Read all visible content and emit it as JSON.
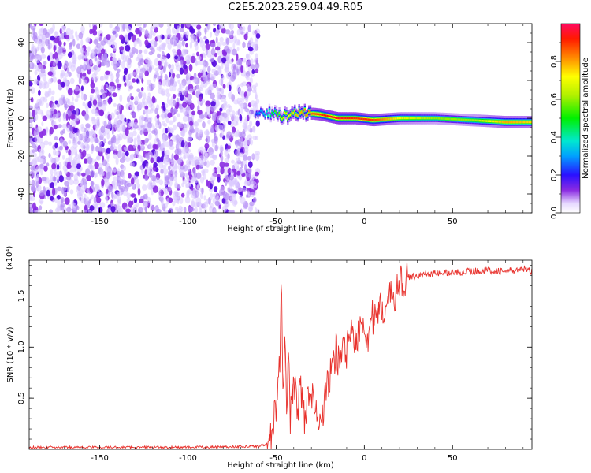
{
  "title": "C2E5.2023.259.04.49.R05",
  "chart_data": [
    {
      "type": "heatmap",
      "xlabel": "Height of straight line (km)",
      "ylabel": "Frequency (Hz)",
      "xlim": [
        -190,
        95
      ],
      "ylim": [
        -50,
        50
      ],
      "xticks": [
        -150,
        -100,
        -50,
        0,
        50
      ],
      "yticks": [
        -40,
        -20,
        0,
        20,
        40
      ],
      "colorbar": {
        "label": "Normalized spectral amplitude",
        "range": [
          0,
          1
        ],
        "ticks": [
          "0.0",
          "0.2",
          "0.4",
          "0.6",
          "0.8"
        ]
      },
      "noise_region": {
        "x": [
          -190,
          -62
        ],
        "freq": [
          -50,
          50
        ],
        "amplitude": [
          0.02,
          0.12
        ]
      },
      "signal_ridge": [
        {
          "x": -62,
          "freq": 2,
          "amplitude": 0.25
        },
        {
          "x": -55,
          "freq": 3,
          "amplitude": 0.4
        },
        {
          "x": -45,
          "freq": 1,
          "amplitude": 0.7
        },
        {
          "x": -35,
          "freq": 3,
          "amplitude": 0.8
        },
        {
          "x": -25,
          "freq": 2,
          "amplitude": 0.9
        },
        {
          "x": -15,
          "freq": 0,
          "amplitude": 0.95
        },
        {
          "x": -5,
          "freq": 0,
          "amplitude": 0.9
        },
        {
          "x": 5,
          "freq": -1,
          "amplitude": 0.9
        },
        {
          "x": 20,
          "freq": 0,
          "amplitude": 0.7
        },
        {
          "x": 40,
          "freq": 0,
          "amplitude": 0.6
        },
        {
          "x": 60,
          "freq": -1,
          "amplitude": 0.6
        },
        {
          "x": 80,
          "freq": -2,
          "amplitude": 0.8
        },
        {
          "x": 95,
          "freq": -2,
          "amplitude": 0.75
        }
      ]
    },
    {
      "type": "line",
      "xlabel": "Height of straight line (km)",
      "ylabel": "SNR (10 * v/v)",
      "y_multiplier": "(x10⁴)",
      "xlim": [
        -190,
        95
      ],
      "ylim": [
        0,
        1.85
      ],
      "xticks": [
        -150,
        -100,
        -50,
        0,
        50
      ],
      "yticks": [
        "0.5",
        "1.0",
        "1.5"
      ],
      "color": "#e8302b",
      "series": [
        {
          "x": [
            -190,
            -150,
            -100,
            -60,
            -55,
            -52,
            -50,
            -48,
            -47,
            -46,
            -45,
            -44,
            -43,
            -42,
            -40,
            -38,
            -36,
            -34,
            -32,
            -30,
            -28,
            -26,
            -24,
            -22,
            -20,
            -18,
            -16,
            -14,
            -12,
            -10,
            -8,
            -6,
            -4,
            -2,
            0,
            2,
            4,
            6,
            8,
            10,
            12,
            14,
            16,
            18,
            20,
            22,
            25,
            30,
            40,
            50,
            60,
            70,
            80,
            90,
            95
          ],
          "y": [
            0.02,
            0.02,
            0.02,
            0.03,
            0.05,
            0.2,
            0.4,
            0.8,
            1.6,
            0.6,
            1.0,
            0.4,
            0.9,
            0.3,
            0.7,
            0.4,
            0.6,
            0.3,
            0.5,
            0.6,
            0.35,
            0.25,
            0.3,
            0.5,
            0.7,
            0.75,
            1.0,
            0.8,
            1.05,
            0.95,
            1.2,
            1.0,
            1.1,
            1.3,
            1.2,
            1.1,
            1.3,
            1.25,
            1.3,
            1.4,
            1.35,
            1.45,
            1.5,
            1.55,
            1.6,
            1.65,
            1.68,
            1.7,
            1.72,
            1.73,
            1.74,
            1.75,
            1.74,
            1.76,
            1.74
          ]
        }
      ]
    }
  ]
}
